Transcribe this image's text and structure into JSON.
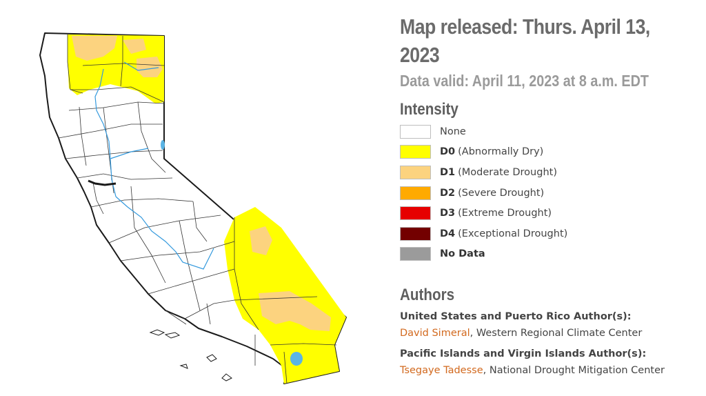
{
  "header": {
    "title": "Map released: Thurs. April 13, 2023",
    "subtitle": "Data valid: April 11, 2023 at 8 a.m. EDT"
  },
  "legend": {
    "heading": "Intensity",
    "items": [
      {
        "code": "",
        "label": "None",
        "color": "#ffffff"
      },
      {
        "code": "D0",
        "label": "(Abnormally Dry)",
        "color": "#ffff00"
      },
      {
        "code": "D1",
        "label": "(Moderate Drought)",
        "color": "#fcd37f"
      },
      {
        "code": "D2",
        "label": "(Severe Drought)",
        "color": "#ffaa00"
      },
      {
        "code": "D3",
        "label": "(Extreme Drought)",
        "color": "#e60000"
      },
      {
        "code": "D4",
        "label": "(Exceptional Drought)",
        "color": "#730000"
      },
      {
        "code": "",
        "label": "No Data",
        "color": "#9b9b9b"
      }
    ]
  },
  "authors": {
    "heading": "Authors",
    "groups": [
      {
        "label": "United States and Puerto Rico Author(s):",
        "name": "David Simeral",
        "org": ", Western Regional Climate Center"
      },
      {
        "label": "Pacific Islands and Virgin Islands Author(s):",
        "name": "Tsegaye Tadesse",
        "org": ", National Drought Mitigation Center"
      }
    ]
  },
  "map": {
    "region": "California",
    "colors": {
      "outline": "#1a1a1a",
      "county_lines": "#333333",
      "rivers": "#3399dd",
      "d0": "#ffff00",
      "d1": "#fcd37f",
      "background": "#ffffff"
    }
  }
}
